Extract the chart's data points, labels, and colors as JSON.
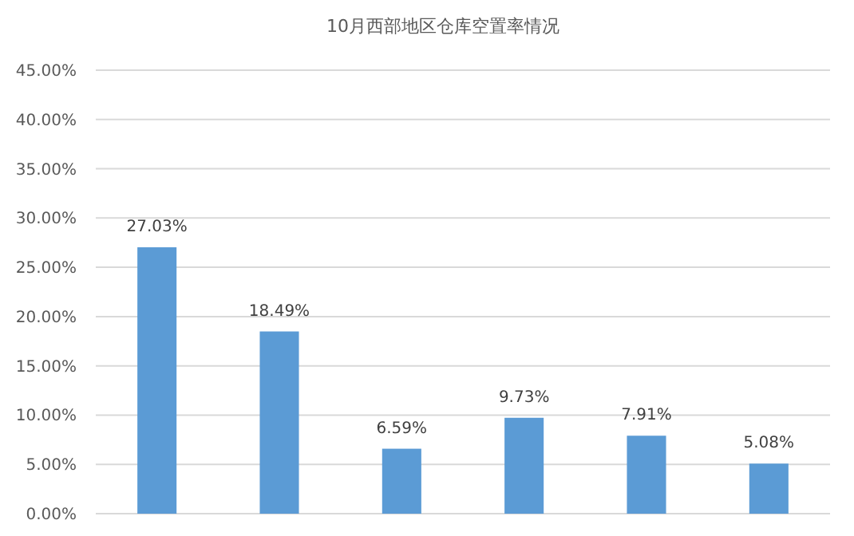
{
  "chart_data": {
    "type": "bar",
    "title": "10月西部地区仓库空置率情况",
    "categories": [
      null,
      null,
      null,
      null,
      null,
      null
    ],
    "values": [
      27.03,
      18.49,
      6.59,
      9.73,
      7.91,
      5.08
    ],
    "color": "#5b9bd5",
    "value_labels": [
      "27.03%",
      "18.49%",
      "6.59%",
      "9.73%",
      "7.91%",
      "5.08%"
    ],
    "ylim": [
      0,
      45
    ],
    "yticks": [
      {
        "value": 0,
        "label": "0.00%"
      },
      {
        "value": 5,
        "label": "5.00%"
      },
      {
        "value": 10,
        "label": "10.00%"
      },
      {
        "value": 15,
        "label": "15.00%"
      },
      {
        "value": 20,
        "label": "20.00%"
      },
      {
        "value": 25,
        "label": "25.00%"
      },
      {
        "value": 30,
        "label": "30.00%"
      },
      {
        "value": 35,
        "label": "35.00%"
      },
      {
        "value": 40,
        "label": "40.00%"
      },
      {
        "value": 45,
        "label": "45.00%"
      }
    ],
    "grid": "y"
  }
}
